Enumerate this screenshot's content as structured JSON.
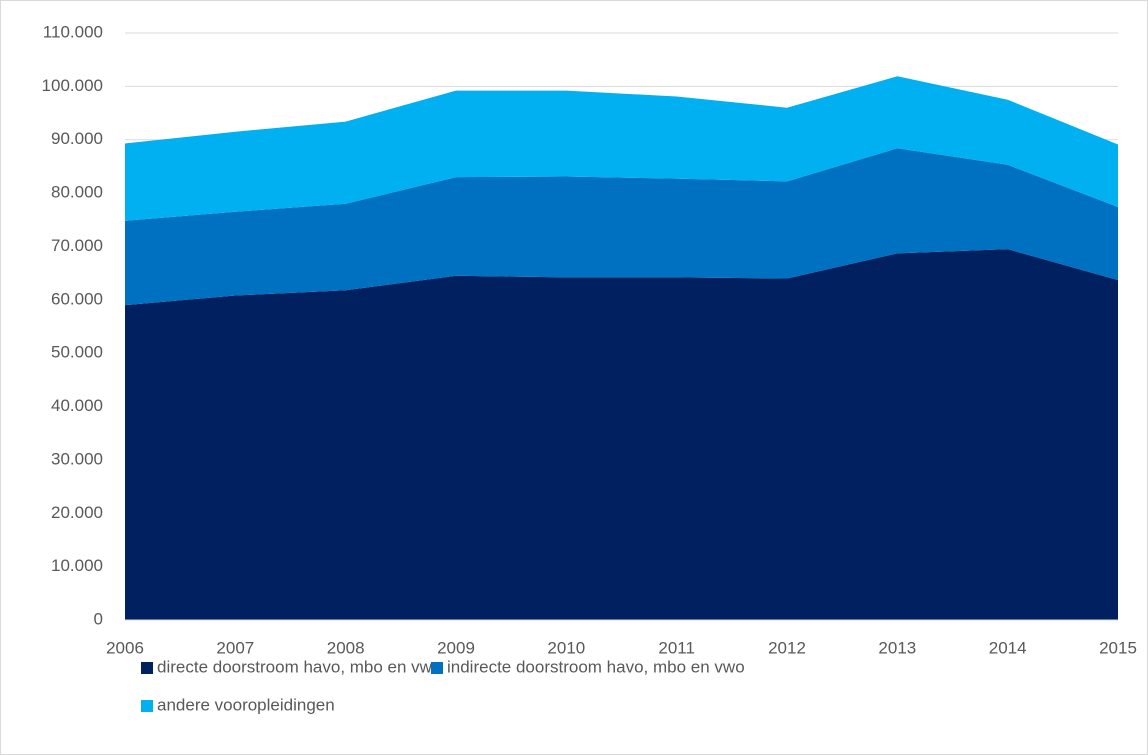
{
  "chart_data": {
    "type": "stacked_area",
    "categories": [
      "2006",
      "2007",
      "2008",
      "2009",
      "2010",
      "2011",
      "2012",
      "2013",
      "2014",
      "2015"
    ],
    "series": [
      {
        "name": "directe doorstroom havo, mbo en vwo",
        "color": "#002060",
        "values": [
          59000,
          60800,
          61800,
          64500,
          64200,
          64200,
          64000,
          68700,
          69500,
          63700
        ]
      },
      {
        "name": "indirecte doorstroom havo, mbo en vwo",
        "color": "#0070c0",
        "values": [
          15800,
          15700,
          16200,
          18500,
          18900,
          18500,
          18200,
          19700,
          15800,
          13700
        ]
      },
      {
        "name": "andere vooropleidingen",
        "color": "#00b0f0",
        "values": [
          14500,
          15000,
          15400,
          16200,
          16100,
          15400,
          13800,
          13500,
          12200,
          11700
        ]
      }
    ],
    "ylim": [
      0,
      110000
    ],
    "yticks": [
      0,
      {
        "value": 10000,
        "label": "10.000"
      },
      {
        "value": 20000,
        "label": "20.000"
      },
      {
        "value": 30000,
        "label": "30.000"
      },
      {
        "value": 40000,
        "label": "40.000"
      },
      {
        "value": 50000,
        "label": "50.000"
      },
      {
        "value": 60000,
        "label": "60.000"
      },
      {
        "value": 70000,
        "label": "70.000"
      },
      {
        "value": 80000,
        "label": "80.000"
      },
      {
        "value": 90000,
        "label": "90.000"
      },
      {
        "value": 100000,
        "label": "100.000"
      },
      {
        "value": 110000,
        "label": "110.000"
      }
    ],
    "grid": true,
    "legend": "bottom"
  }
}
